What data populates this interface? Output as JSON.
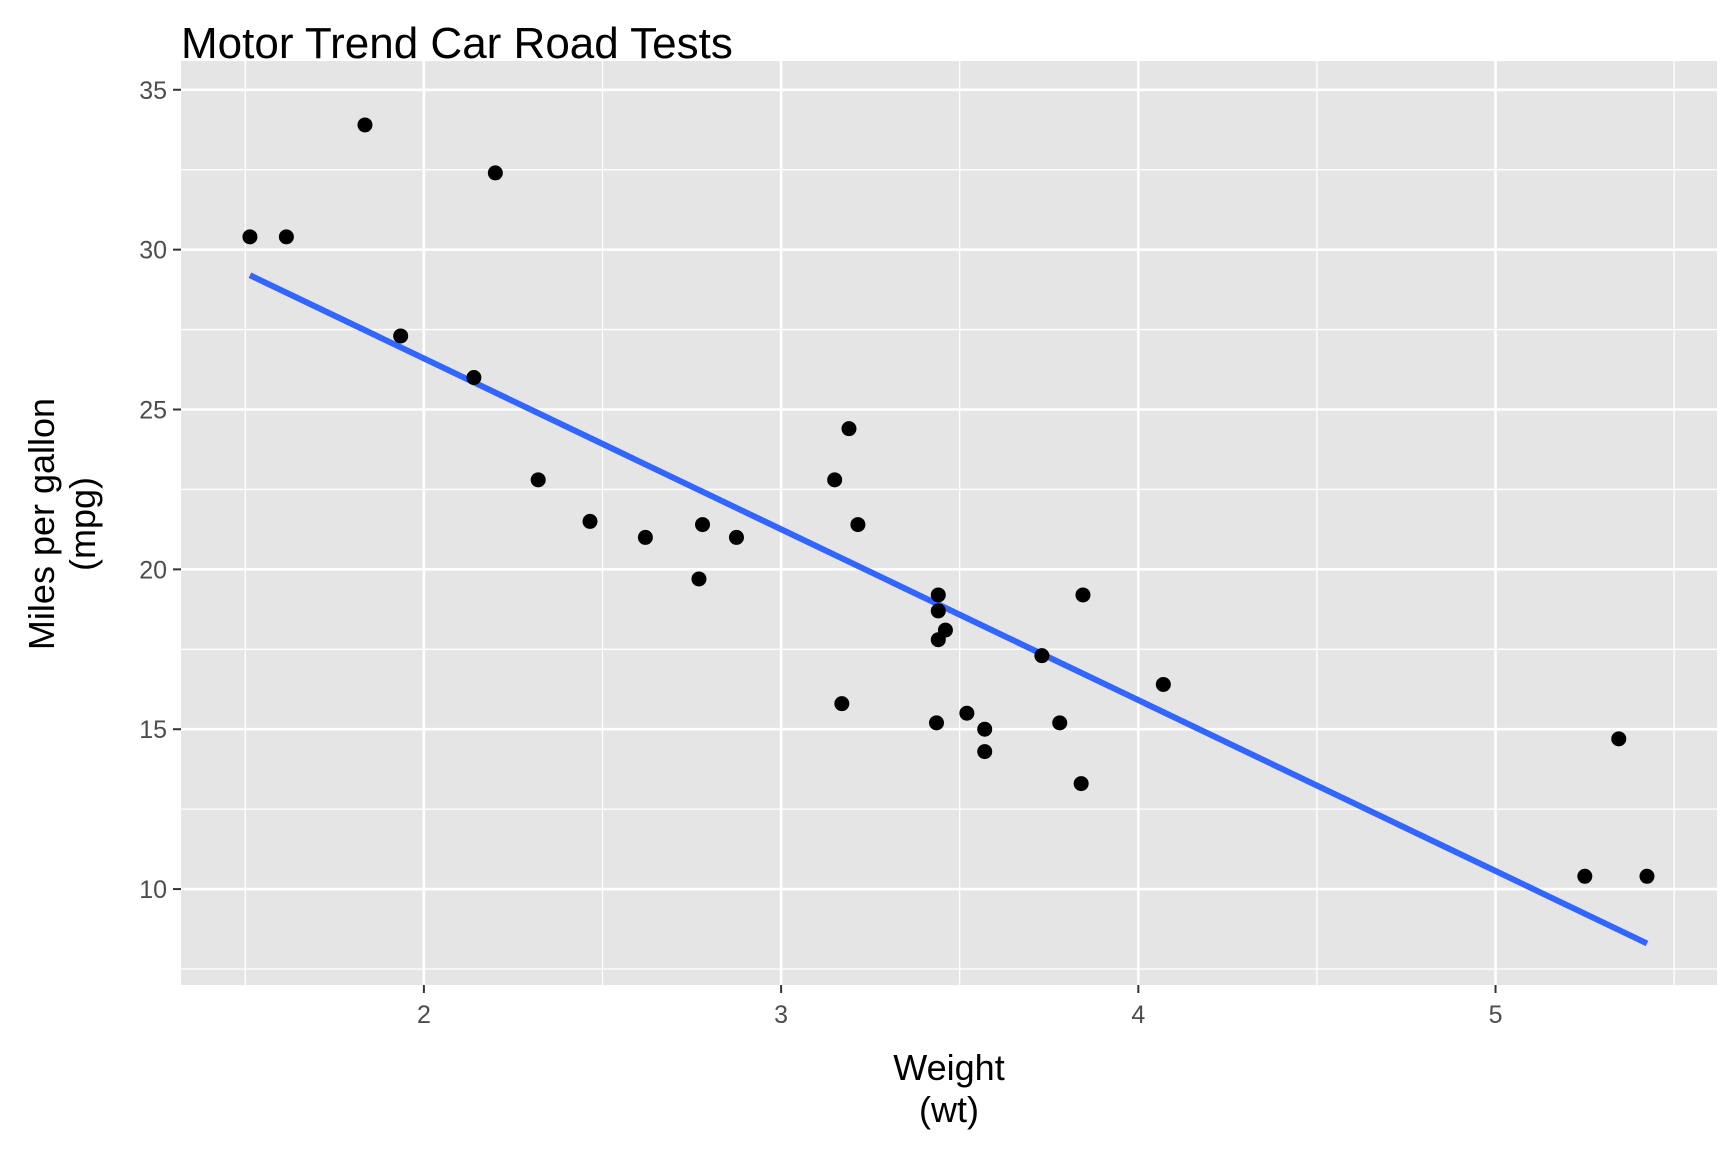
{
  "chart_data": {
    "type": "scatter",
    "title": "Motor Trend Car Road Tests",
    "xlabel": [
      "Weight",
      "(wt)"
    ],
    "ylabel": [
      "Miles per gallon",
      "(mpg)"
    ],
    "xlim": [
      1.32,
      5.62
    ],
    "ylim": [
      7.0,
      35.9
    ],
    "x_ticks": [
      2,
      3,
      4,
      5
    ],
    "y_ticks": [
      10,
      15,
      20,
      25,
      30,
      35
    ],
    "grid": true,
    "legend": "none",
    "point_color": "#000000",
    "background_color": "#e5e5e5",
    "grid_color": "#ffffff",
    "points": [
      {
        "x": 2.62,
        "y": 21.0
      },
      {
        "x": 2.875,
        "y": 21.0
      },
      {
        "x": 2.32,
        "y": 22.8
      },
      {
        "x": 3.215,
        "y": 21.4
      },
      {
        "x": 3.44,
        "y": 18.7
      },
      {
        "x": 3.46,
        "y": 18.1
      },
      {
        "x": 3.57,
        "y": 14.3
      },
      {
        "x": 3.19,
        "y": 24.4
      },
      {
        "x": 3.15,
        "y": 22.8
      },
      {
        "x": 3.44,
        "y": 19.2
      },
      {
        "x": 3.44,
        "y": 17.8
      },
      {
        "x": 4.07,
        "y": 16.4
      },
      {
        "x": 3.73,
        "y": 17.3
      },
      {
        "x": 3.78,
        "y": 15.2
      },
      {
        "x": 5.25,
        "y": 10.4
      },
      {
        "x": 5.424,
        "y": 10.4
      },
      {
        "x": 5.345,
        "y": 14.7
      },
      {
        "x": 2.2,
        "y": 32.4
      },
      {
        "x": 1.615,
        "y": 30.4
      },
      {
        "x": 1.835,
        "y": 33.9
      },
      {
        "x": 2.465,
        "y": 21.5
      },
      {
        "x": 3.52,
        "y": 15.5
      },
      {
        "x": 3.435,
        "y": 15.2
      },
      {
        "x": 3.84,
        "y": 13.3
      },
      {
        "x": 3.845,
        "y": 19.2
      },
      {
        "x": 1.935,
        "y": 27.3
      },
      {
        "x": 2.14,
        "y": 26.0
      },
      {
        "x": 1.513,
        "y": 30.4
      },
      {
        "x": 3.17,
        "y": 15.8
      },
      {
        "x": 2.77,
        "y": 19.7
      },
      {
        "x": 3.57,
        "y": 15.0
      },
      {
        "x": 2.78,
        "y": 21.4
      }
    ],
    "fit_line": {
      "color": "#3366ff",
      "points": [
        {
          "x": 1.513,
          "y": 29.2
        },
        {
          "x": 5.424,
          "y": 8.3
        }
      ]
    }
  }
}
